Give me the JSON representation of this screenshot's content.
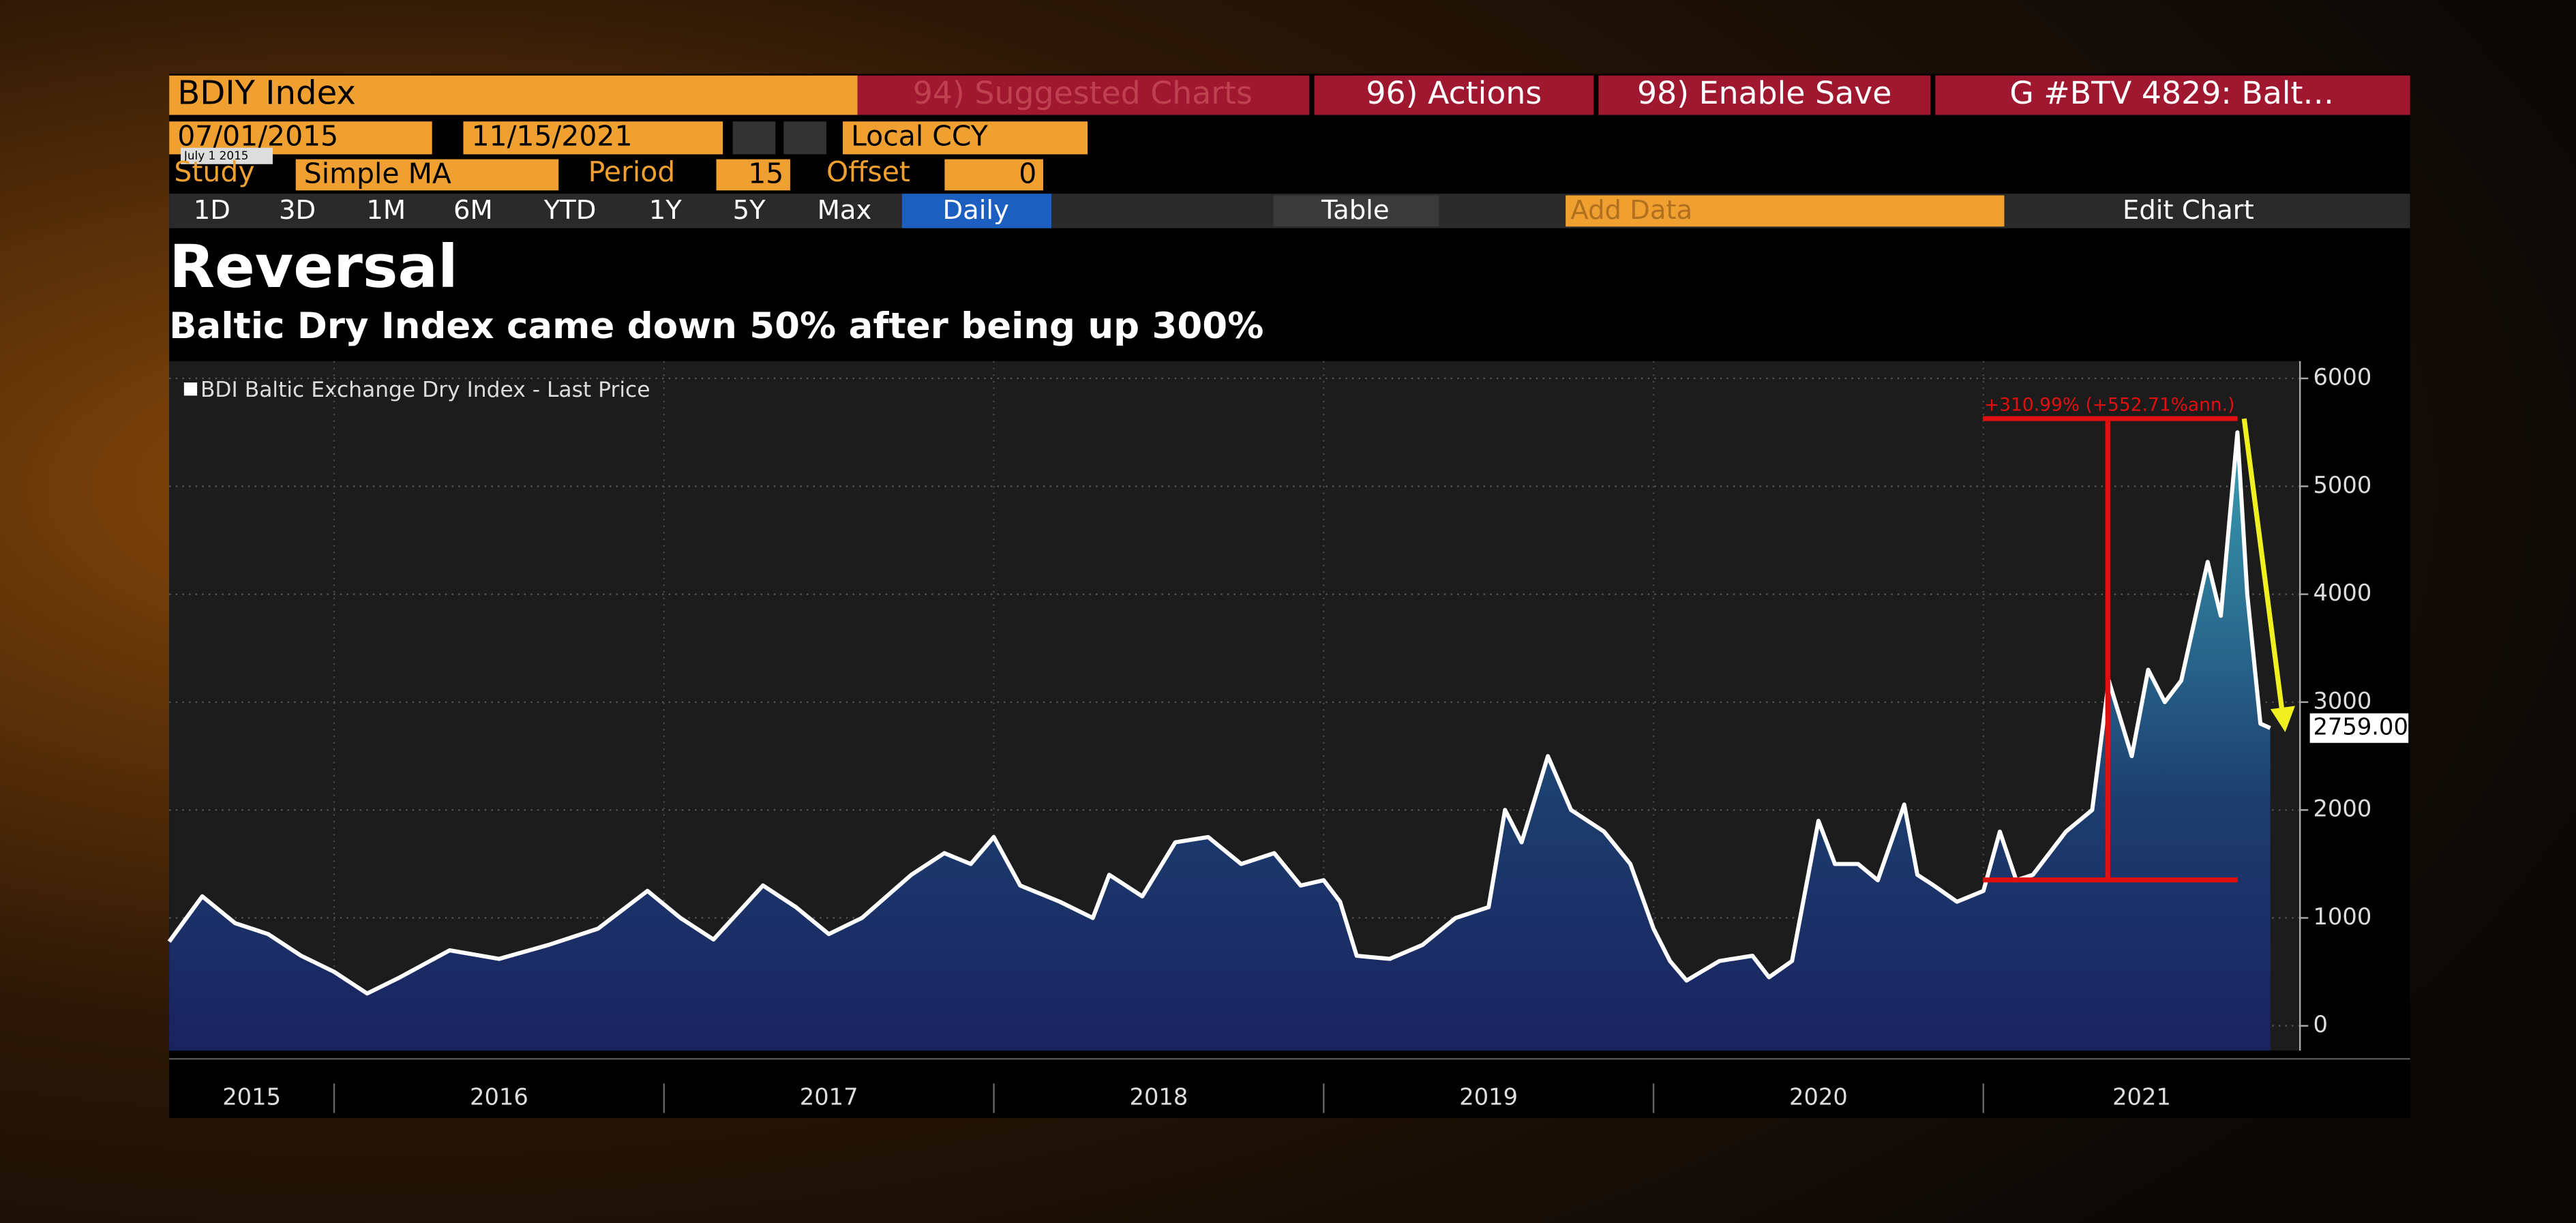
{
  "header": {
    "ticker": "BDIY Index",
    "menu": [
      "94) Suggested Charts",
      "96) Actions",
      "98) Enable Save"
    ],
    "tab": "G #BTV 4829: Balt…"
  },
  "controls": {
    "start_date": "07/01/2015",
    "date_tooltip": "July 1 2015",
    "end_date": "11/15/2021",
    "currency": "Local CCY",
    "study_label": "Study",
    "study": "Simple MA",
    "period_label": "Period",
    "period": "15",
    "offset_label": "Offset",
    "offset": "0"
  },
  "toolbar": {
    "ranges": [
      "1D",
      "3D",
      "1M",
      "6M",
      "YTD",
      "1Y",
      "5Y",
      "Max"
    ],
    "frequency": "Daily",
    "table": "Table",
    "add_data": "Add Data",
    "edit_chart": "Edit Chart"
  },
  "chart_data": {
    "type": "line",
    "title": "Reversal",
    "subtitle": "Baltic Dry Index came down 50% after being up 300%",
    "x": [
      2015.5,
      2015.6,
      2015.7,
      2015.8,
      2015.9,
      2016.0,
      2016.1,
      2016.2,
      2016.35,
      2016.5,
      2016.65,
      2016.8,
      2016.95,
      2017.05,
      2017.15,
      2017.3,
      2017.4,
      2017.5,
      2017.6,
      2017.75,
      2017.85,
      2017.93,
      2018.0,
      2018.08,
      2018.2,
      2018.3,
      2018.35,
      2018.45,
      2018.55,
      2018.65,
      2018.75,
      2018.85,
      2018.93,
      2019.0,
      2019.05,
      2019.1,
      2019.2,
      2019.3,
      2019.4,
      2019.5,
      2019.55,
      2019.6,
      2019.68,
      2019.75,
      2019.85,
      2019.93,
      2020.0,
      2020.05,
      2020.1,
      2020.2,
      2020.3,
      2020.35,
      2020.42,
      2020.5,
      2020.55,
      2020.62,
      2020.68,
      2020.76,
      2020.8,
      2020.85,
      2020.92,
      2021.0,
      2021.05,
      2021.1,
      2021.15,
      2021.25,
      2021.33,
      2021.38,
      2021.45,
      2021.5,
      2021.55,
      2021.6,
      2021.68,
      2021.72,
      2021.77,
      2021.8,
      2021.84,
      2021.87
    ],
    "series": [
      {
        "name": "BDI Baltic Exchange Dry Index - Last Price",
        "color": "#ffffff",
        "values": [
          780,
          1200,
          950,
          850,
          650,
          500,
          300,
          450,
          700,
          620,
          750,
          900,
          1250,
          1000,
          800,
          1300,
          1100,
          850,
          1000,
          1400,
          1600,
          1500,
          1750,
          1300,
          1150,
          1000,
          1400,
          1200,
          1700,
          1750,
          1500,
          1600,
          1300,
          1350,
          1150,
          650,
          620,
          750,
          1000,
          1100,
          2000,
          1700,
          2500,
          2000,
          1800,
          1500,
          900,
          600,
          420,
          600,
          650,
          450,
          600,
          1900,
          1500,
          1500,
          1350,
          2050,
          1400,
          1300,
          1150,
          1250,
          1800,
          1350,
          1400,
          1800,
          2000,
          3200,
          2500,
          3300,
          3000,
          3200,
          4300,
          3800,
          5500,
          4000,
          2800,
          2759
        ]
      }
    ],
    "last_label": "2759.00",
    "change_label": "+310.99% (+552.71%ann.)",
    "xlim": [
      2015.5,
      2021.96
    ],
    "ylim": [
      -230,
      6160
    ],
    "yticks": [
      0,
      1000,
      2000,
      3000,
      4000,
      5000,
      6000
    ],
    "xticks": [
      {
        "value": 2015.75,
        "label": "2015"
      },
      {
        "value": 2016.5,
        "label": "2016"
      },
      {
        "value": 2017.5,
        "label": "2017"
      },
      {
        "value": 2018.5,
        "label": "2018"
      },
      {
        "value": 2019.5,
        "label": "2019"
      },
      {
        "value": 2020.5,
        "label": "2020"
      },
      {
        "value": 2021.48,
        "label": "2021"
      }
    ],
    "year_boundaries": [
      2016,
      2017,
      2018,
      2019,
      2020,
      2021
    ],
    "grid": true
  }
}
